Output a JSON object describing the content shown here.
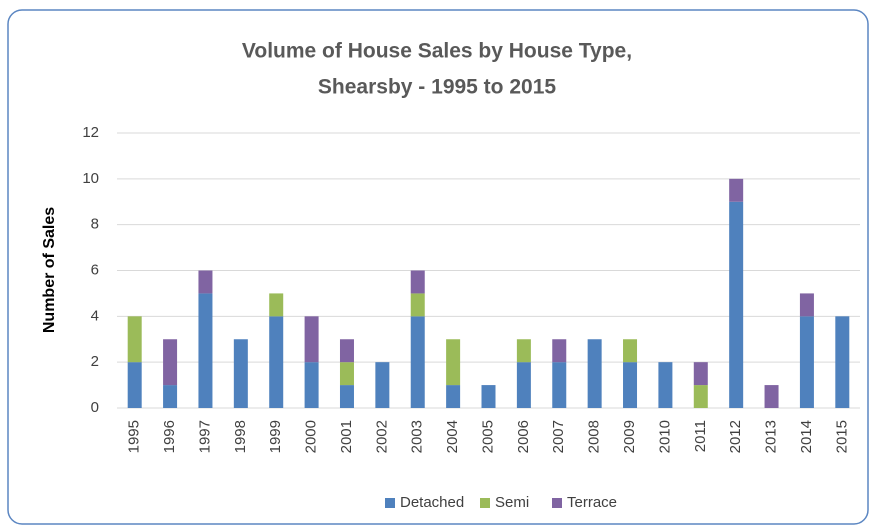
{
  "chart_data": {
    "type": "stacked_bar",
    "title": [
      "Volume of House Sales by House Type,",
      "Shearsby - 1995 to 2015"
    ],
    "y_label": "Number of Sales",
    "categories": [
      "1995",
      "1996",
      "1997",
      "1998",
      "1999",
      "2000",
      "2001",
      "2002",
      "2003",
      "2004",
      "2005",
      "2006",
      "2007",
      "2008",
      "2009",
      "2010",
      "2011",
      "2012",
      "2013",
      "2014",
      "2015"
    ],
    "series": [
      {
        "name": "Detached",
        "color": "#4f81bd",
        "values": [
          2,
          1,
          5,
          3,
          4,
          2,
          1,
          2,
          4,
          1,
          1,
          2,
          2,
          3,
          2,
          2,
          0,
          9,
          0,
          4,
          4
        ]
      },
      {
        "name": "Semi",
        "color": "#9bbb59",
        "values": [
          2,
          0,
          0,
          0,
          1,
          0,
          1,
          0,
          1,
          2,
          0,
          1,
          0,
          0,
          1,
          0,
          1,
          0,
          0,
          0,
          0
        ]
      },
      {
        "name": "Terrace",
        "color": "#8064a2",
        "values": [
          0,
          2,
          1,
          0,
          0,
          2,
          1,
          0,
          1,
          0,
          0,
          0,
          1,
          0,
          0,
          0,
          1,
          1,
          1,
          1,
          0
        ]
      }
    ],
    "ylim": [
      0,
      12
    ],
    "yticks": [
      0,
      2,
      4,
      6,
      8,
      10,
      12
    ],
    "grid": true,
    "legend": "bottom"
  }
}
